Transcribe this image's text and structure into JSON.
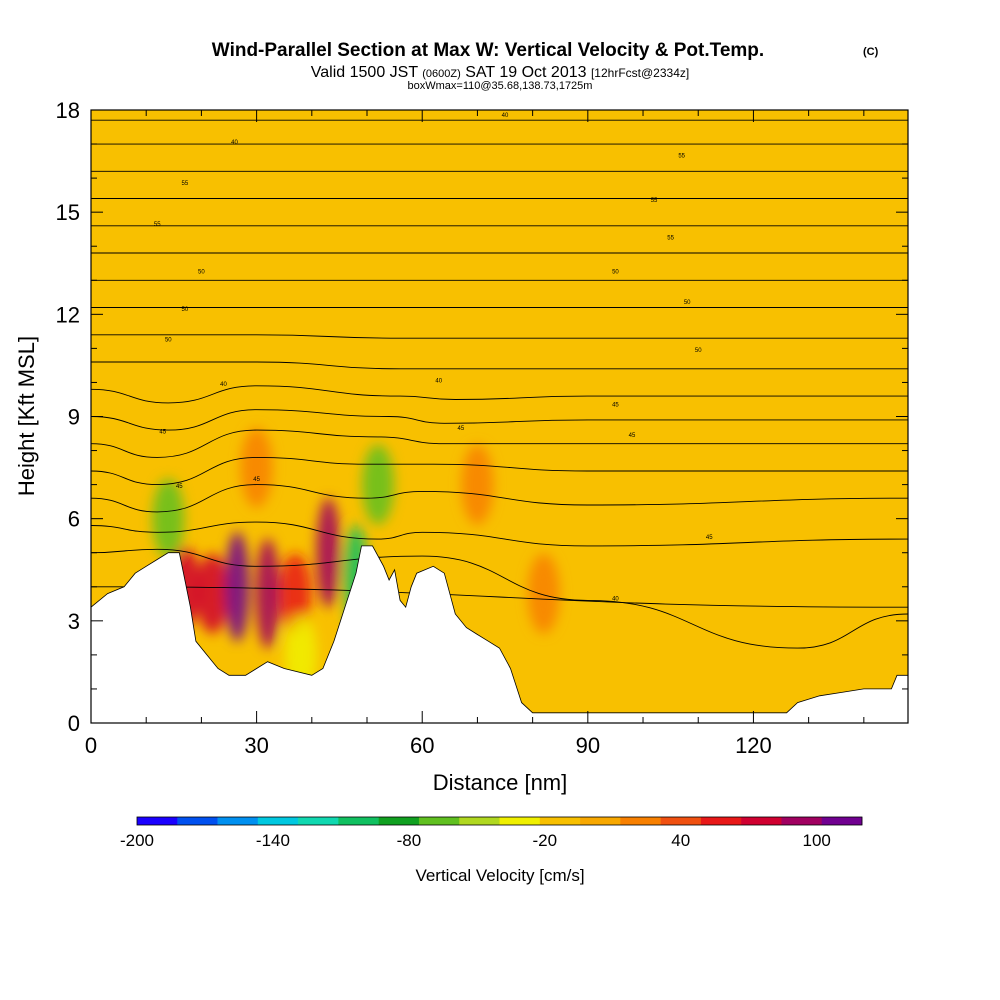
{
  "chart_data": {
    "type": "heatmap",
    "title": "Wind-Parallel Section at Max W: Vertical Velocity & Pot.Temp.",
    "title_mark": "(C)",
    "subtitle_parts": {
      "valid": "Valid 1500 JST",
      "utc": "(0600Z)",
      "date": "SAT 19 Oct 2013",
      "fcst": "[12hrFcst@2334z]"
    },
    "subtitle2": "boxWmax=110@35.68,138.73,1725m",
    "xlabel": "Distance [nm]",
    "ylabel": "Height [Kft MSL]",
    "xlim": [
      0,
      148
    ],
    "ylim": [
      0,
      18
    ],
    "x_ticks": [
      0,
      30,
      60,
      90,
      120
    ],
    "y_ticks": [
      0,
      3,
      6,
      9,
      12,
      15,
      18
    ],
    "colorbar": {
      "label": "Vertical Velocity [cm/s]",
      "ticks": [
        -200,
        -140,
        -80,
        -20,
        40,
        100
      ],
      "range": [
        -200,
        120
      ],
      "colors": [
        "#1a00ff",
        "#0050f0",
        "#0090f0",
        "#00c8e0",
        "#10d8b0",
        "#10c060",
        "#10a020",
        "#60c020",
        "#b0d820",
        "#f0f000",
        "#f8c000",
        "#f8a800",
        "#f88000",
        "#f05010",
        "#e81818",
        "#d00030",
        "#a00060",
        "#700090"
      ]
    },
    "contour_label_values": [
      "40",
      "45",
      "50",
      "55"
    ],
    "terrain_profile": [
      [
        0,
        3.4
      ],
      [
        3,
        3.8
      ],
      [
        6,
        4.0
      ],
      [
        8,
        4.4
      ],
      [
        10,
        4.6
      ],
      [
        12,
        4.8
      ],
      [
        14,
        5.0
      ],
      [
        16,
        5.0
      ],
      [
        18,
        3.4
      ],
      [
        19,
        2.4
      ],
      [
        21,
        2.0
      ],
      [
        23,
        1.6
      ],
      [
        25,
        1.4
      ],
      [
        28,
        1.4
      ],
      [
        30,
        1.6
      ],
      [
        32,
        1.8
      ],
      [
        35,
        1.6
      ],
      [
        40,
        1.4
      ],
      [
        42,
        1.6
      ],
      [
        44,
        2.4
      ],
      [
        46,
        3.4
      ],
      [
        48,
        4.4
      ],
      [
        49,
        5.2
      ],
      [
        51,
        5.2
      ],
      [
        53,
        4.6
      ],
      [
        54,
        4.2
      ],
      [
        55,
        4.5
      ],
      [
        56,
        3.6
      ],
      [
        57,
        3.4
      ],
      [
        58,
        4.0
      ],
      [
        59,
        4.4
      ],
      [
        62,
        4.6
      ],
      [
        64,
        4.4
      ],
      [
        66,
        3.2
      ],
      [
        68,
        2.8
      ],
      [
        70,
        2.6
      ],
      [
        72,
        2.4
      ],
      [
        74,
        2.2
      ],
      [
        76,
        1.6
      ],
      [
        78,
        0.6
      ],
      [
        80,
        0.3
      ],
      [
        90,
        0.3
      ],
      [
        100,
        0.3
      ],
      [
        110,
        0.3
      ],
      [
        120,
        0.3
      ],
      [
        126,
        0.3
      ],
      [
        128,
        0.6
      ],
      [
        132,
        0.8
      ],
      [
        136,
        0.9
      ],
      [
        140,
        1.0
      ],
      [
        145,
        1.0
      ],
      [
        146,
        1.4
      ],
      [
        148,
        1.4
      ]
    ],
    "velocity_cells": [
      {
        "x": 17,
        "y": 4.0,
        "value": 70
      },
      {
        "x": 22,
        "y": 3.8,
        "value": 80
      },
      {
        "x": 26.5,
        "y": 4.0,
        "value": 115
      },
      {
        "x": 32,
        "y": 3.8,
        "value": 95
      },
      {
        "x": 37,
        "y": 3.8,
        "value": 60
      },
      {
        "x": 43,
        "y": 5.0,
        "value": 90
      },
      {
        "x": 48,
        "y": 4.2,
        "value": -100
      },
      {
        "x": 38,
        "y": 2.0,
        "value": -40
      },
      {
        "x": 14,
        "y": 6.0,
        "value": -70
      },
      {
        "x": 52,
        "y": 7.0,
        "value": -60
      },
      {
        "x": 70,
        "y": 7.0,
        "value": 30
      },
      {
        "x": 82,
        "y": 3.8,
        "value": 25
      },
      {
        "x": 30,
        "y": 7.5,
        "value": 20
      }
    ],
    "theta_levels": [
      [
        [
          0,
          4.0
        ],
        [
          148,
          3.4
        ]
      ],
      [
        [
          0,
          5.0
        ],
        [
          12,
          5.1
        ],
        [
          30,
          4.6
        ],
        [
          60,
          4.9
        ],
        [
          90,
          3.6
        ],
        [
          128,
          2.2
        ],
        [
          148,
          3.2
        ]
      ],
      [
        [
          0,
          5.8
        ],
        [
          12,
          5.6
        ],
        [
          30,
          5.9
        ],
        [
          52,
          5.4
        ],
        [
          60,
          5.6
        ],
        [
          90,
          5.2
        ],
        [
          148,
          5.4
        ]
      ],
      [
        [
          0,
          6.6
        ],
        [
          12,
          6.2
        ],
        [
          30,
          7.0
        ],
        [
          50,
          6.6
        ],
        [
          60,
          6.8
        ],
        [
          90,
          6.4
        ],
        [
          148,
          6.6
        ]
      ],
      [
        [
          0,
          7.4
        ],
        [
          12,
          7.0
        ],
        [
          30,
          7.8
        ],
        [
          50,
          7.6
        ],
        [
          62,
          7.6
        ],
        [
          90,
          7.4
        ],
        [
          148,
          7.4
        ]
      ],
      [
        [
          0,
          8.2
        ],
        [
          12,
          7.8
        ],
        [
          30,
          8.6
        ],
        [
          52,
          8.4
        ],
        [
          64,
          8.2
        ],
        [
          90,
          8.2
        ],
        [
          148,
          8.2
        ]
      ],
      [
        [
          0,
          9.0
        ],
        [
          14,
          8.6
        ],
        [
          30,
          9.2
        ],
        [
          54,
          9.0
        ],
        [
          64,
          8.8
        ],
        [
          90,
          8.9
        ],
        [
          148,
          8.9
        ]
      ],
      [
        [
          0,
          9.8
        ],
        [
          14,
          9.4
        ],
        [
          30,
          9.9
        ],
        [
          56,
          9.6
        ],
        [
          66,
          9.5
        ],
        [
          90,
          9.6
        ],
        [
          148,
          9.6
        ]
      ],
      [
        [
          0,
          10.6
        ],
        [
          30,
          10.6
        ],
        [
          56,
          10.4
        ],
        [
          90,
          10.4
        ],
        [
          148,
          10.4
        ]
      ],
      [
        [
          0,
          11.4
        ],
        [
          30,
          11.4
        ],
        [
          56,
          11.3
        ],
        [
          90,
          11.3
        ],
        [
          148,
          11.3
        ]
      ],
      [
        [
          0,
          12.2
        ],
        [
          30,
          12.2
        ],
        [
          56,
          12.2
        ],
        [
          90,
          12.2
        ],
        [
          148,
          12.2
        ]
      ],
      [
        [
          0,
          13.0
        ],
        [
          30,
          13.0
        ],
        [
          56,
          13.0
        ],
        [
          90,
          13.0
        ],
        [
          148,
          13.0
        ]
      ],
      [
        [
          0,
          13.8
        ],
        [
          30,
          13.8
        ],
        [
          56,
          13.8
        ],
        [
          90,
          13.8
        ],
        [
          148,
          13.8
        ]
      ],
      [
        [
          0,
          14.6
        ],
        [
          30,
          14.6
        ],
        [
          56,
          14.6
        ],
        [
          90,
          14.6
        ],
        [
          148,
          14.6
        ]
      ],
      [
        [
          0,
          15.4
        ],
        [
          30,
          15.4
        ],
        [
          56,
          15.4
        ],
        [
          90,
          15.4
        ],
        [
          148,
          15.4
        ]
      ],
      [
        [
          0,
          16.2
        ],
        [
          30,
          16.2
        ],
        [
          56,
          16.2
        ],
        [
          90,
          16.2
        ],
        [
          148,
          16.2
        ]
      ],
      [
        [
          0,
          17.0
        ],
        [
          30,
          17.0
        ],
        [
          56,
          17.0
        ],
        [
          90,
          17.0
        ],
        [
          148,
          17.0
        ]
      ],
      [
        [
          0,
          17.7
        ],
        [
          30,
          17.7
        ],
        [
          56,
          17.7
        ],
        [
          90,
          17.7
        ],
        [
          148,
          17.7
        ]
      ]
    ],
    "contour_labels": [
      {
        "x": 16,
        "y": 6.9,
        "text": "45"
      },
      {
        "x": 30,
        "y": 7.1,
        "text": "45"
      },
      {
        "x": 13,
        "y": 8.5,
        "text": "45"
      },
      {
        "x": 24,
        "y": 9.9,
        "text": "40"
      },
      {
        "x": 14,
        "y": 11.2,
        "text": "50"
      },
      {
        "x": 17,
        "y": 12.1,
        "text": "50"
      },
      {
        "x": 20,
        "y": 13.2,
        "text": "50"
      },
      {
        "x": 12,
        "y": 14.6,
        "text": "55"
      },
      {
        "x": 17,
        "y": 15.8,
        "text": "55"
      },
      {
        "x": 26,
        "y": 17.0,
        "text": "40"
      },
      {
        "x": 63,
        "y": 10.0,
        "text": "40"
      },
      {
        "x": 67,
        "y": 8.6,
        "text": "45"
      },
      {
        "x": 95,
        "y": 9.3,
        "text": "45"
      },
      {
        "x": 98,
        "y": 8.4,
        "text": "45"
      },
      {
        "x": 110,
        "y": 10.9,
        "text": "50"
      },
      {
        "x": 108,
        "y": 12.3,
        "text": "50"
      },
      {
        "x": 95,
        "y": 13.2,
        "text": "50"
      },
      {
        "x": 105,
        "y": 14.2,
        "text": "55"
      },
      {
        "x": 102,
        "y": 15.3,
        "text": "55"
      },
      {
        "x": 107,
        "y": 16.6,
        "text": "55"
      },
      {
        "x": 75,
        "y": 17.8,
        "text": "40"
      },
      {
        "x": 95,
        "y": 3.6,
        "text": "40"
      },
      {
        "x": 112,
        "y": 5.4,
        "text": "45"
      }
    ]
  }
}
